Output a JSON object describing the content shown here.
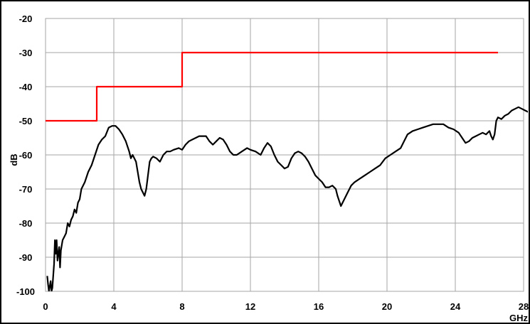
{
  "chart_data": {
    "type": "line",
    "title": "",
    "xlabel": "GHz",
    "ylabel": "dB",
    "xlim": [
      0,
      28
    ],
    "ylim": [
      -100,
      -20
    ],
    "x_ticks": [
      0,
      4,
      8,
      12,
      16,
      20,
      24,
      28
    ],
    "y_ticks": [
      -20,
      -30,
      -40,
      -50,
      -60,
      -70,
      -80,
      -90,
      -100
    ],
    "grid": true,
    "legend": "none",
    "series": [
      {
        "color": "#ff0000",
        "points": [
          [
            0,
            -50
          ],
          [
            3.0,
            -50
          ],
          [
            3.0,
            -40
          ],
          [
            8.0,
            -40
          ],
          [
            8.0,
            -30
          ],
          [
            26.5,
            -30
          ]
        ]
      },
      {
        "color": "#000000",
        "points": [
          [
            0.1,
            -95.5
          ],
          [
            0.15,
            -98
          ],
          [
            0.2,
            -100
          ],
          [
            0.3,
            -97
          ],
          [
            0.35,
            -100
          ],
          [
            0.4,
            -99
          ],
          [
            0.5,
            -92
          ],
          [
            0.55,
            -85
          ],
          [
            0.6,
            -89
          ],
          [
            0.65,
            -85
          ],
          [
            0.7,
            -91
          ],
          [
            0.8,
            -87
          ],
          [
            0.85,
            -93
          ],
          [
            0.9,
            -88
          ],
          [
            1.0,
            -85
          ],
          [
            1.1,
            -84
          ],
          [
            1.2,
            -83
          ],
          [
            1.3,
            -80
          ],
          [
            1.4,
            -81
          ],
          [
            1.5,
            -79
          ],
          [
            1.6,
            -78
          ],
          [
            1.7,
            -76
          ],
          [
            1.8,
            -77
          ],
          [
            1.9,
            -74
          ],
          [
            2.0,
            -73
          ],
          [
            2.1,
            -70
          ],
          [
            2.3,
            -68
          ],
          [
            2.5,
            -65
          ],
          [
            2.7,
            -63
          ],
          [
            2.9,
            -60
          ],
          [
            3.1,
            -57
          ],
          [
            3.3,
            -55.5
          ],
          [
            3.5,
            -54.5
          ],
          [
            3.7,
            -52
          ],
          [
            3.9,
            -51.5
          ],
          [
            4.1,
            -51.5
          ],
          [
            4.3,
            -52.5
          ],
          [
            4.5,
            -54
          ],
          [
            4.7,
            -56
          ],
          [
            4.9,
            -59
          ],
          [
            5.0,
            -61
          ],
          [
            5.1,
            -60
          ],
          [
            5.2,
            -61
          ],
          [
            5.3,
            -62
          ],
          [
            5.4,
            -65
          ],
          [
            5.5,
            -68
          ],
          [
            5.6,
            -70
          ],
          [
            5.7,
            -71
          ],
          [
            5.8,
            -72
          ],
          [
            5.9,
            -70
          ],
          [
            6.0,
            -66
          ],
          [
            6.1,
            -62
          ],
          [
            6.2,
            -61
          ],
          [
            6.3,
            -60.5
          ],
          [
            6.5,
            -61
          ],
          [
            6.7,
            -62
          ],
          [
            6.9,
            -60
          ],
          [
            7.1,
            -59
          ],
          [
            7.3,
            -59
          ],
          [
            7.5,
            -58.5
          ],
          [
            7.8,
            -58
          ],
          [
            8.0,
            -58.5
          ],
          [
            8.2,
            -57
          ],
          [
            8.4,
            -56
          ],
          [
            8.6,
            -55.5
          ],
          [
            8.8,
            -55
          ],
          [
            9.0,
            -54.5
          ],
          [
            9.2,
            -54.5
          ],
          [
            9.4,
            -54.5
          ],
          [
            9.6,
            -56
          ],
          [
            9.8,
            -57
          ],
          [
            10.0,
            -56
          ],
          [
            10.2,
            -55
          ],
          [
            10.4,
            -55.5
          ],
          [
            10.6,
            -57
          ],
          [
            10.8,
            -59
          ],
          [
            11.0,
            -60
          ],
          [
            11.2,
            -60
          ],
          [
            11.5,
            -59
          ],
          [
            11.8,
            -58
          ],
          [
            12.0,
            -58.5
          ],
          [
            12.3,
            -59
          ],
          [
            12.6,
            -60
          ],
          [
            12.8,
            -58
          ],
          [
            13.0,
            -56.5
          ],
          [
            13.2,
            -57.5
          ],
          [
            13.4,
            -60
          ],
          [
            13.6,
            -62
          ],
          [
            13.8,
            -63
          ],
          [
            14.0,
            -64
          ],
          [
            14.2,
            -63.5
          ],
          [
            14.4,
            -61
          ],
          [
            14.6,
            -59.5
          ],
          [
            14.8,
            -59
          ],
          [
            15.0,
            -59.5
          ],
          [
            15.2,
            -60.5
          ],
          [
            15.4,
            -62
          ],
          [
            15.6,
            -64
          ],
          [
            15.8,
            -66
          ],
          [
            16.0,
            -67
          ],
          [
            16.2,
            -68
          ],
          [
            16.4,
            -69.5
          ],
          [
            16.6,
            -69.5
          ],
          [
            16.8,
            -69
          ],
          [
            17.0,
            -70
          ],
          [
            17.1,
            -72
          ],
          [
            17.2,
            -73.5
          ],
          [
            17.3,
            -75
          ],
          [
            17.5,
            -73
          ],
          [
            17.7,
            -71
          ],
          [
            17.9,
            -69
          ],
          [
            18.1,
            -68
          ],
          [
            18.4,
            -67
          ],
          [
            18.7,
            -66
          ],
          [
            19.0,
            -65
          ],
          [
            19.3,
            -64
          ],
          [
            19.6,
            -63
          ],
          [
            19.9,
            -61
          ],
          [
            20.2,
            -60
          ],
          [
            20.5,
            -59
          ],
          [
            20.8,
            -58
          ],
          [
            21.0,
            -56
          ],
          [
            21.2,
            -54
          ],
          [
            21.5,
            -53
          ],
          [
            21.8,
            -52.5
          ],
          [
            22.1,
            -52
          ],
          [
            22.4,
            -51.5
          ],
          [
            22.7,
            -51
          ],
          [
            23.0,
            -51
          ],
          [
            23.3,
            -51
          ],
          [
            23.6,
            -52
          ],
          [
            23.9,
            -52.5
          ],
          [
            24.2,
            -53.5
          ],
          [
            24.4,
            -55
          ],
          [
            24.6,
            -56.5
          ],
          [
            24.8,
            -56
          ],
          [
            25.0,
            -55
          ],
          [
            25.2,
            -54.5
          ],
          [
            25.4,
            -54
          ],
          [
            25.6,
            -53.5
          ],
          [
            25.8,
            -54
          ],
          [
            26.0,
            -53
          ],
          [
            26.1,
            -54.5
          ],
          [
            26.2,
            -55.5
          ],
          [
            26.3,
            -54
          ],
          [
            26.4,
            -50
          ],
          [
            26.5,
            -49
          ],
          [
            26.7,
            -49.5
          ],
          [
            26.9,
            -48.5
          ],
          [
            27.1,
            -48
          ],
          [
            27.3,
            -47
          ],
          [
            27.5,
            -46.5
          ],
          [
            27.7,
            -46
          ],
          [
            27.9,
            -46.5
          ],
          [
            28.1,
            -47
          ],
          [
            28.3,
            -47.5
          ]
        ]
      }
    ]
  }
}
